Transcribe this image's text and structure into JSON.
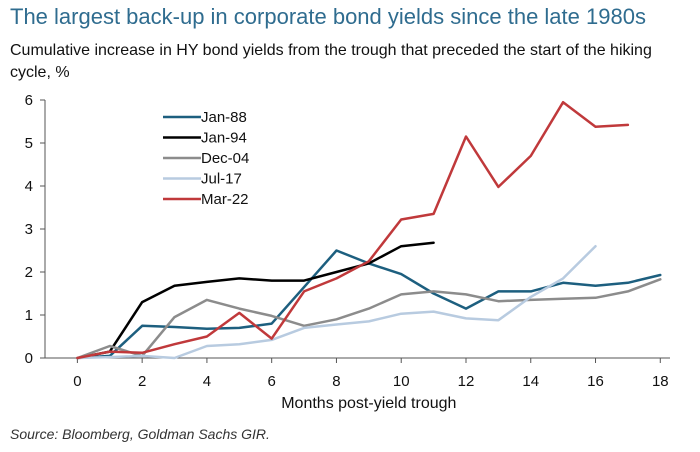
{
  "title": "The largest back-up in corporate bond yields since the late 1980s",
  "subtitle": "Cumulative increase in HY bond yields from the trough that preceded the start of the hiking cycle, %",
  "source": "Source: Bloomberg, Goldman Sachs GIR.",
  "chart_data": {
    "type": "line",
    "title": "The largest back-up in corporate bond yields since the late 1980s",
    "subtitle": "Cumulative increase in HY bond yields from the trough that preceded the start of the hiking cycle, %",
    "xlabel": "Months post-yield trough",
    "ylabel": "",
    "xlim": [
      -1,
      18.3
    ],
    "ylim": [
      0,
      6
    ],
    "x_ticks": [
      0,
      2,
      4,
      6,
      8,
      10,
      12,
      14,
      16,
      18
    ],
    "y_ticks": [
      0,
      1,
      2,
      3,
      4,
      5,
      6
    ],
    "grid": false,
    "legend_position": "top-left",
    "series": [
      {
        "name": "Jan-88",
        "color": "#1d5f7f",
        "x": [
          0,
          1,
          2,
          3,
          4,
          5,
          6,
          7,
          8,
          9,
          10,
          11,
          12,
          13,
          14,
          15,
          16,
          17,
          18
        ],
        "values": [
          0,
          0.05,
          0.75,
          0.72,
          0.68,
          0.7,
          0.8,
          1.65,
          2.5,
          2.2,
          1.95,
          1.5,
          1.15,
          1.55,
          1.55,
          1.75,
          1.68,
          1.75,
          1.93
        ]
      },
      {
        "name": "Jan-94",
        "color": "#000000",
        "x": [
          0,
          1,
          2,
          3,
          4,
          5,
          6,
          7,
          8,
          9,
          10,
          11
        ],
        "values": [
          0,
          0.15,
          1.3,
          1.68,
          1.77,
          1.85,
          1.8,
          1.8,
          2.0,
          2.2,
          2.6,
          2.68
        ]
      },
      {
        "name": "Dec-04",
        "color": "#8c8c8c",
        "x": [
          0,
          1,
          2,
          3,
          4,
          5,
          6,
          7,
          8,
          9,
          10,
          11,
          12,
          13,
          14,
          15,
          16,
          17,
          18
        ],
        "values": [
          0,
          0.28,
          0.05,
          0.95,
          1.35,
          1.15,
          0.98,
          0.75,
          0.9,
          1.15,
          1.48,
          1.55,
          1.48,
          1.32,
          1.35,
          1.38,
          1.4,
          1.55,
          1.83
        ]
      },
      {
        "name": "Jul-17",
        "color": "#b8cbe0",
        "x": [
          0,
          1,
          2,
          3,
          4,
          5,
          6,
          7,
          8,
          9,
          10,
          11,
          12,
          13,
          14,
          15,
          16
        ],
        "values": [
          0,
          0.02,
          0.05,
          0.0,
          0.28,
          0.32,
          0.42,
          0.7,
          0.78,
          0.85,
          1.03,
          1.08,
          0.92,
          0.88,
          1.42,
          1.85,
          2.6
        ]
      },
      {
        "name": "Mar-22",
        "color": "#c0393b",
        "x": [
          0,
          1,
          2,
          3,
          4,
          5,
          6,
          7,
          8,
          9,
          10,
          11,
          12,
          13,
          14,
          15,
          16,
          17
        ],
        "values": [
          0,
          0.15,
          0.12,
          0.32,
          0.5,
          1.05,
          0.45,
          1.55,
          1.85,
          2.25,
          3.22,
          3.35,
          5.15,
          3.98,
          4.7,
          5.95,
          5.38,
          5.42
        ]
      }
    ]
  }
}
